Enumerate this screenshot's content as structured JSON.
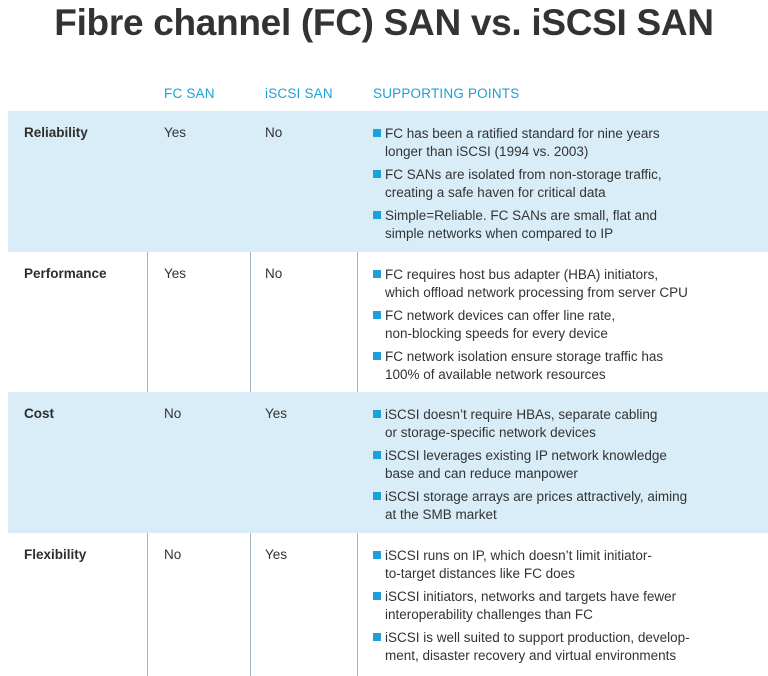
{
  "title": "Fibre channel (FC) SAN vs. iSCSI SAN",
  "headers": {
    "fc": "FC SAN",
    "iscsi": "iSCSI SAN",
    "points": "SUPPORTING POINTS"
  },
  "colors": {
    "accent": "#1ba1d8",
    "row_shade": "#d9edf8",
    "title": "#333333"
  },
  "rows": [
    {
      "name": "Reliability",
      "fc": "Yes",
      "iscsi": "No",
      "points": [
        [
          "FC has been a ratified standard for nine years",
          "longer than iSCSI (1994 vs. 2003)"
        ],
        [
          "FC SANs are isolated from non-storage traffic,",
          "creating a safe haven for critical data"
        ],
        [
          "Simple=Reliable. FC SANs are small, flat and",
          "simple networks when compared to IP"
        ]
      ]
    },
    {
      "name": "Performance",
      "fc": "Yes",
      "iscsi": "No",
      "points": [
        [
          "FC requires host bus adapter (HBA) initiators,",
          "which offload network processing from server CPU"
        ],
        [
          "FC network devices can offer line rate,",
          "non-blocking speeds for every device"
        ],
        [
          "FC network isolation ensure storage traffic has",
          "100% of available network resources"
        ]
      ]
    },
    {
      "name": "Cost",
      "fc": "No",
      "iscsi": "Yes",
      "points": [
        [
          "iSCSI doesn’t require HBAs, separate cabling",
          "or storage-specific network devices"
        ],
        [
          "iSCSI leverages existing IP network knowledge",
          "base and can reduce manpower"
        ],
        [
          "iSCSI storage arrays are prices attractively, aiming",
          "at the SMB market"
        ]
      ]
    },
    {
      "name": "Flexibility",
      "fc": "No",
      "iscsi": "Yes",
      "points": [
        [
          "iSCSI runs on IP, which doesn’t limit initiator-",
          "to-target distances like FC does"
        ],
        [
          "iSCSI initiators, networks and targets have fewer",
          "interoperability challenges than FC"
        ],
        [
          "iSCSI is well suited to support production, develop-",
          "ment, disaster recovery and virtual environments"
        ]
      ]
    }
  ]
}
